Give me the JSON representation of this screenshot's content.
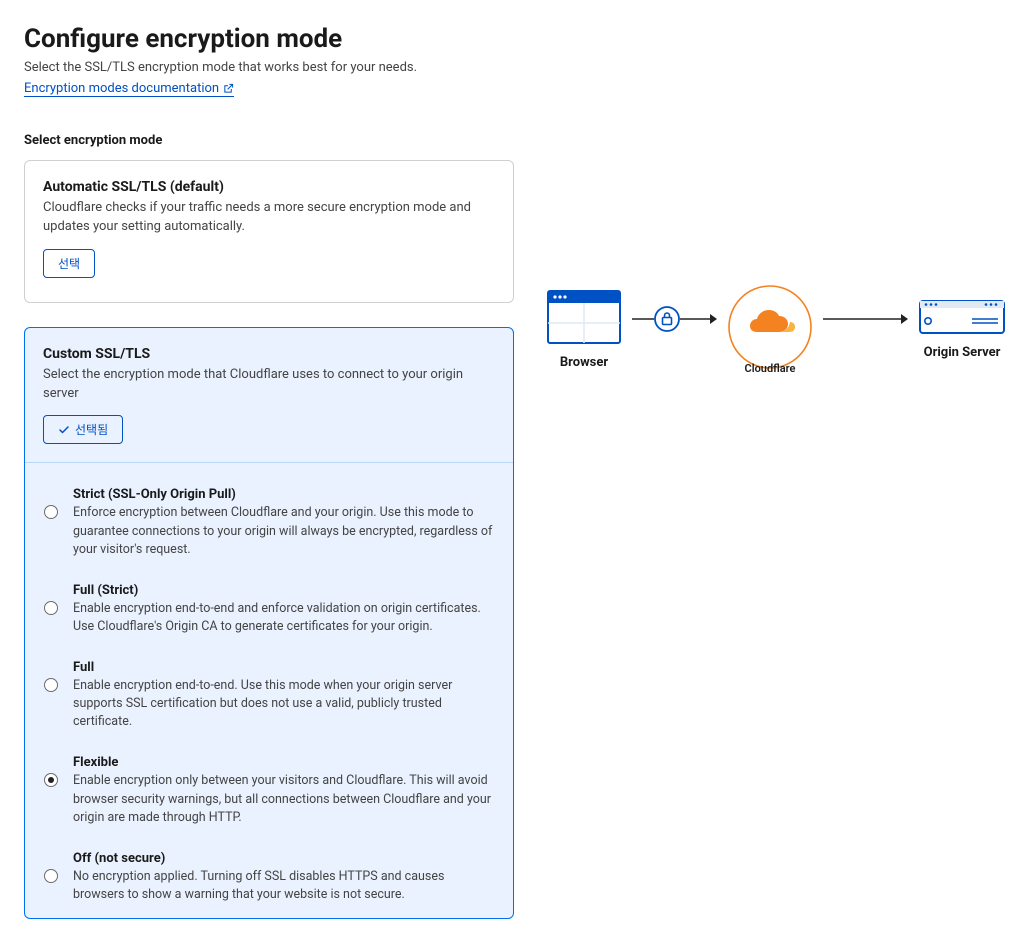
{
  "header": {
    "title": "Configure encryption mode",
    "subtitle": "Select the SSL/TLS encryption mode that works best for your needs.",
    "doc_link": "Encryption modes documentation"
  },
  "section_label": "Select encryption mode",
  "auto_card": {
    "title": "Automatic SSL/TLS (default)",
    "desc": "Cloudflare checks if your traffic needs a more secure encryption mode and updates your setting automatically.",
    "button": "선택"
  },
  "custom_card": {
    "title": "Custom SSL/TLS",
    "desc": "Select the encryption mode that Cloudflare uses to connect to your origin server",
    "button": "선택됨"
  },
  "options": [
    {
      "title": "Strict (SSL-Only Origin Pull)",
      "desc": "Enforce encryption between Cloudflare and your origin. Use this mode to guarantee connections to your origin will always be encrypted, regardless of your visitor's request.",
      "checked": false
    },
    {
      "title": "Full (Strict)",
      "desc": "Enable encryption end-to-end and enforce validation on origin certificates. Use Cloudflare's Origin CA to generate certificates for your origin.",
      "checked": false
    },
    {
      "title": "Full",
      "desc": "Enable encryption end-to-end. Use this mode when your origin server supports SSL certification but does not use a valid, publicly trusted certificate.",
      "checked": false
    },
    {
      "title": "Flexible",
      "desc": "Enable encryption only between your visitors and Cloudflare. This will avoid browser security warnings, but all connections between Cloudflare and your origin are made through HTTP.",
      "checked": true
    },
    {
      "title": "Off (not secure)",
      "desc": "No encryption applied. Turning off SSL disables HTTPS and causes browsers to show a warning that your website is not secure.",
      "checked": false
    }
  ],
  "diagram": {
    "browser_label": "Browser",
    "cloudflare_label": "Cloudflare",
    "origin_label": "Origin Server",
    "colors": {
      "accent_blue": "#0051c3",
      "cloudflare_orange": "#f58220",
      "selected_bg": "#eaf2ff"
    }
  }
}
